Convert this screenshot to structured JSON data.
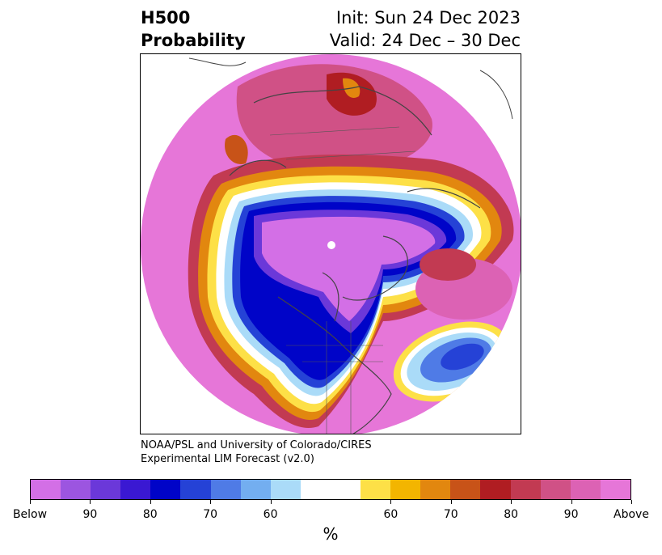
{
  "title": {
    "line1": "H500",
    "line2": "Probability"
  },
  "subtitle": {
    "init": "Init: Sun 24 Dec 2023",
    "valid": "Valid: 24 Dec – 30 Dec"
  },
  "credit": {
    "line1": "NOAA/PSL and University of Colorado/CIRES",
    "line2": "Experimental LIM Forecast (v2.0)"
  },
  "colorbar": {
    "unit_label": "%",
    "ticks": [
      "Below",
      "90",
      "80",
      "70",
      "60",
      "60",
      "70",
      "80",
      "90",
      "Above"
    ],
    "colors": [
      "#d36fe6",
      "#9c55e0",
      "#6b38d9",
      "#3a18d2",
      "#0004c8",
      "#2542d6",
      "#4f7be6",
      "#73aef0",
      "#aadbf8",
      "#ffffff",
      "#ffffff",
      "#fde047",
      "#f3b500",
      "#e2870f",
      "#c85318",
      "#b01d22",
      "#c23a52",
      "#d05186",
      "#dc62b4",
      "#e676d8"
    ]
  }
}
